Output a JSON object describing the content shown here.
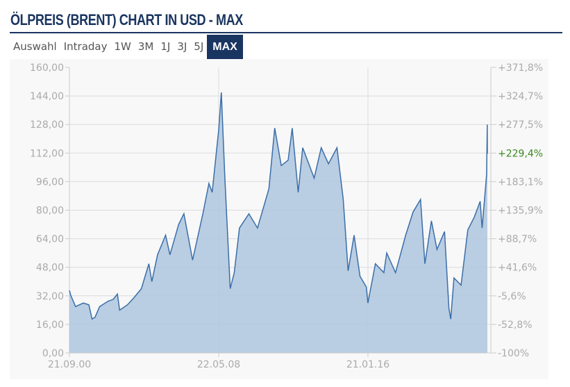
{
  "header": {
    "title": "ÖLPREIS (BRENT) CHART IN USD - MAX"
  },
  "tabs": [
    {
      "label": "Auswahl"
    },
    {
      "label": "Intraday"
    },
    {
      "label": "1W"
    },
    {
      "label": "3M"
    },
    {
      "label": "1J"
    },
    {
      "label": "3J"
    },
    {
      "label": "5J"
    },
    {
      "label": "MAX",
      "active": true
    }
  ],
  "colors": {
    "accent": "#1a3560",
    "line": "#3a6ea8",
    "fill": "#aec5df",
    "current": "#3a8a1e",
    "axis_text": "#aaaaaa"
  },
  "chart_data": {
    "type": "area",
    "ylim": [
      0,
      160
    ],
    "y_ticks": [
      "0,00",
      "16,00",
      "32,00",
      "48,00",
      "64,00",
      "80,00",
      "96,00",
      "112,00",
      "128,00",
      "144,00",
      "160,00"
    ],
    "y2_ticks": [
      "-100%",
      "-52,8%",
      "-5,6%",
      "+41,6%",
      "+88,7%",
      "+135,9%",
      "+183,1%",
      "+229,4%",
      "+277,5%",
      "+324,7%",
      "+371,8%"
    ],
    "y2_highlight": "+229,4%",
    "x_ticks": [
      {
        "label": "21.09.00",
        "date": "2000-09-21"
      },
      {
        "label": "22.05.08",
        "date": "2008-05-22"
      },
      {
        "label": "21.01.16",
        "date": "2016-01-21"
      }
    ],
    "grid": true,
    "points": [
      [
        "2000-09-21",
        35
      ],
      [
        "2000-10-20",
        32
      ],
      [
        "2001-01-15",
        26
      ],
      [
        "2001-06-10",
        28
      ],
      [
        "2001-09-20",
        27
      ],
      [
        "2001-11-20",
        19
      ],
      [
        "2002-01-15",
        20
      ],
      [
        "2002-04-10",
        26
      ],
      [
        "2002-09-15",
        29
      ],
      [
        "2002-12-20",
        30
      ],
      [
        "2003-03-10",
        33
      ],
      [
        "2003-04-20",
        24
      ],
      [
        "2003-09-15",
        27
      ],
      [
        "2004-01-15",
        31
      ],
      [
        "2004-06-01",
        36
      ],
      [
        "2004-10-20",
        50
      ],
      [
        "2004-12-15",
        40
      ],
      [
        "2005-04-01",
        55
      ],
      [
        "2005-08-30",
        66
      ],
      [
        "2005-11-20",
        55
      ],
      [
        "2006-05-01",
        72
      ],
      [
        "2006-08-08",
        78
      ],
      [
        "2007-01-18",
        52
      ],
      [
        "2007-07-30",
        78
      ],
      [
        "2007-11-20",
        95
      ],
      [
        "2008-01-20",
        90
      ],
      [
        "2008-05-22",
        125
      ],
      [
        "2008-07-11",
        146
      ],
      [
        "2008-09-15",
        98
      ],
      [
        "2008-12-24",
        36
      ],
      [
        "2009-03-10",
        45
      ],
      [
        "2009-06-15",
        70
      ],
      [
        "2009-12-10",
        78
      ],
      [
        "2010-05-20",
        70
      ],
      [
        "2010-12-20",
        92
      ],
      [
        "2011-04-08",
        126
      ],
      [
        "2011-08-09",
        105
      ],
      [
        "2011-12-15",
        108
      ],
      [
        "2012-03-01",
        126
      ],
      [
        "2012-06-21",
        90
      ],
      [
        "2012-09-14",
        115
      ],
      [
        "2013-04-17",
        98
      ],
      [
        "2013-08-28",
        115
      ],
      [
        "2014-01-10",
        106
      ],
      [
        "2014-06-19",
        115
      ],
      [
        "2014-10-15",
        86
      ],
      [
        "2015-01-13",
        46
      ],
      [
        "2015-05-06",
        66
      ],
      [
        "2015-08-24",
        43
      ],
      [
        "2015-12-21",
        37
      ],
      [
        "2016-01-20",
        28
      ],
      [
        "2016-06-08",
        50
      ],
      [
        "2016-11-14",
        45
      ],
      [
        "2017-01-06",
        56
      ],
      [
        "2017-06-21",
        45
      ],
      [
        "2017-12-28",
        66
      ],
      [
        "2018-05-17",
        79
      ],
      [
        "2018-10-03",
        86
      ],
      [
        "2018-12-24",
        50
      ],
      [
        "2019-04-25",
        74
      ],
      [
        "2019-08-07",
        58
      ],
      [
        "2019-12-27",
        68
      ],
      [
        "2020-03-18",
        25
      ],
      [
        "2020-04-21",
        19
      ],
      [
        "2020-06-22",
        42
      ],
      [
        "2020-11-02",
        38
      ],
      [
        "2021-03-08",
        69
      ],
      [
        "2021-07-06",
        76
      ],
      [
        "2021-10-26",
        85
      ],
      [
        "2021-12-01",
        70
      ],
      [
        "2022-02-24",
        100
      ],
      [
        "2022-03-08",
        128
      ],
      [
        "2022-03-10",
        111.7
      ]
    ]
  }
}
